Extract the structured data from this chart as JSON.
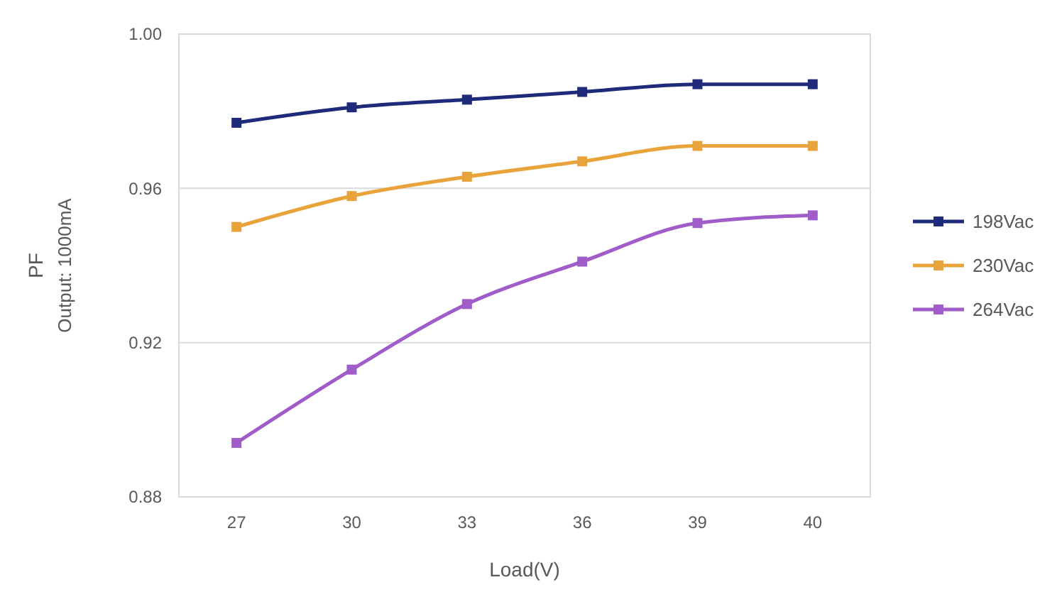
{
  "chart_data": {
    "type": "line",
    "xlabel": "Load(V)",
    "ylabel": "PF",
    "annotations": [
      "Output: 1000mA"
    ],
    "categories": [
      "27",
      "30",
      "33",
      "36",
      "39",
      "40"
    ],
    "ylim": [
      0.88,
      1.0
    ],
    "yticks": [
      {
        "value": 0.88,
        "label": "0.88"
      },
      {
        "value": 0.92,
        "label": "0.92"
      },
      {
        "value": 0.96,
        "label": "0.96"
      },
      {
        "value": 1.0,
        "label": "1.00"
      }
    ],
    "grid": "y",
    "legend": "right",
    "marker": "square",
    "series": [
      {
        "name": "198Vac",
        "color": "#1f2a7a",
        "values": [
          0.977,
          0.981,
          0.983,
          0.985,
          0.987,
          0.987
        ]
      },
      {
        "name": "230Vac",
        "color": "#e8a33a",
        "values": [
          0.95,
          0.958,
          0.963,
          0.967,
          0.971,
          0.971
        ]
      },
      {
        "name": "264Vac",
        "color": "#a05cc8",
        "values": [
          0.894,
          0.913,
          0.93,
          0.941,
          0.951,
          0.953
        ]
      }
    ]
  }
}
